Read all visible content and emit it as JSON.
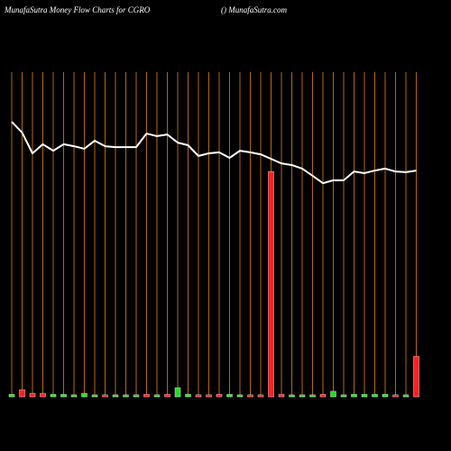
{
  "chart_data": {
    "type": "combo",
    "title": "MunafaSutra  Money Flow  Charts for CGRO",
    "subtitle": "() MunafaSutra.com",
    "categories": [
      null,
      null,
      null,
      null,
      null,
      null,
      null,
      null,
      null,
      null,
      null,
      null,
      null,
      null,
      null,
      null,
      null,
      null,
      null,
      null,
      null,
      null,
      null,
      null,
      null,
      null,
      null,
      null,
      null,
      null,
      null,
      null,
      null,
      null,
      null,
      null,
      null,
      null,
      null,
      null
    ],
    "ylim": [
      0,
      100
    ],
    "grid_color": "#b8660b",
    "series": [
      {
        "type": "line",
        "color": "#ffffff",
        "values": [
          84.7,
          81.4,
          75,
          77.8,
          75.8,
          77.8,
          77.2,
          76.4,
          78.9,
          77.2,
          76.9,
          76.9,
          76.9,
          81.1,
          80.3,
          80.8,
          78.3,
          77.5,
          74.2,
          75,
          75.3,
          73.6,
          75.8,
          75.3,
          74.7,
          73.3,
          71.9,
          71.4,
          70.3,
          68.1,
          65.8,
          66.7,
          66.7,
          69.4,
          68.9,
          69.7,
          70.3,
          69.4,
          69.2,
          69.7
        ]
      },
      {
        "type": "bar",
        "colors": [
          "#22dd22",
          "#ff2020",
          "#ff2020",
          "#ff2020",
          "#22dd22",
          "#22dd22",
          "#22dd22",
          "#22dd22",
          "#22dd22",
          "#ff2020",
          "#22dd22",
          "#22dd22",
          "#22dd22",
          "#ff2020",
          "#22dd22",
          "#ff2020",
          "#22dd22",
          "#22dd22",
          "#ff2020",
          "#ff2020",
          "#ff2020",
          "#22dd22",
          "#22dd22",
          "#ff2020",
          "#ff2020",
          "#ff2020",
          "#ff2020",
          "#22dd22",
          "#22dd22",
          "#22dd22",
          "#ff2020",
          "#22dd22",
          "#22dd22",
          "#22dd22",
          "#22dd22",
          "#22dd22",
          "#22dd22",
          "#ff2020",
          "#22dd22",
          "#ff2020"
        ],
        "values": [
          0.8,
          2.2,
          1.1,
          1.1,
          0.8,
          0.8,
          0.6,
          1.1,
          0.6,
          0.6,
          0.6,
          0.6,
          0.6,
          0.8,
          0.6,
          0.8,
          2.8,
          0.8,
          0.6,
          0.6,
          0.8,
          0.8,
          0.6,
          0.6,
          0.6,
          69.4,
          0.8,
          0.6,
          0.6,
          0.6,
          0.8,
          1.7,
          0.6,
          0.8,
          0.8,
          0.8,
          0.8,
          0.6,
          0.6,
          12.5
        ]
      }
    ]
  }
}
